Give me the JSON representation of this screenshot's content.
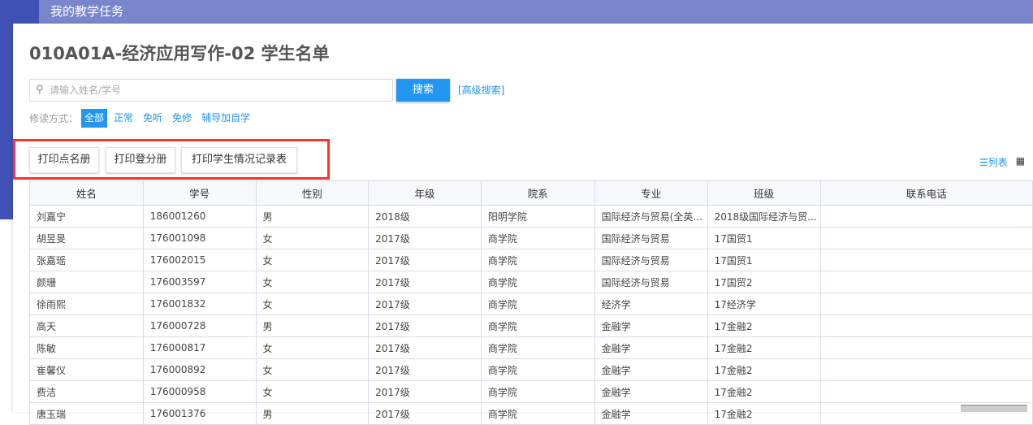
{
  "header": {
    "title": "我的教学任务"
  },
  "page": {
    "title": "010A01A-经济应用写作-02 学生名单"
  },
  "search": {
    "placeholder": "请输入姓名/学号",
    "button": "搜索",
    "advanced": "[高级搜索]"
  },
  "filter": {
    "label": "修读方式：",
    "options": [
      "全部",
      "正常",
      "免听",
      "免修",
      "辅导加自学"
    ],
    "selected": "全部"
  },
  "actions": [
    "打印点名册",
    "打印登分册",
    "打印学生情况记录表"
  ],
  "view": {
    "list": "列表",
    "list_icon": "list-icon",
    "grid_icon": "grid-icon"
  },
  "colors": {
    "accent": "#2196f3",
    "sidebar": "#3f51b5",
    "header": "#7986cb",
    "highlight": "#ff3333"
  },
  "table": {
    "columns": [
      "姓名",
      "学号",
      "性别",
      "年级",
      "院系",
      "专业",
      "班级",
      "联系电话"
    ],
    "rows": [
      [
        "刘嘉宁",
        "186001260",
        "男",
        "2018级",
        "阳明学院",
        "国际经济与贸易(全英...",
        "2018级国际经济与贸...",
        ""
      ],
      [
        "胡昱旻",
        "176001098",
        "女",
        "2017级",
        "商学院",
        "国际经济与贸易",
        "17国贸1",
        ""
      ],
      [
        "张嘉瑶",
        "176002015",
        "女",
        "2017级",
        "商学院",
        "国际经济与贸易",
        "17国贸1",
        ""
      ],
      [
        "颜珊",
        "176003597",
        "女",
        "2017级",
        "商学院",
        "国际经济与贸易",
        "17国贸2",
        ""
      ],
      [
        "徐雨熙",
        "176001832",
        "女",
        "2017级",
        "商学院",
        "经济学",
        "17经济学",
        ""
      ],
      [
        "高天",
        "176000728",
        "男",
        "2017级",
        "商学院",
        "金融学",
        "17金融2",
        ""
      ],
      [
        "陈敏",
        "176000817",
        "女",
        "2017级",
        "商学院",
        "金融学",
        "17金融2",
        ""
      ],
      [
        "崔馨仪",
        "176000892",
        "女",
        "2017级",
        "商学院",
        "金融学",
        "17金融2",
        ""
      ],
      [
        "费洁",
        "176000958",
        "女",
        "2017级",
        "商学院",
        "金融学",
        "17金融2",
        ""
      ],
      [
        "唐玉瑞",
        "176001376",
        "男",
        "2017级",
        "商学院",
        "金融学",
        "17金融2",
        ""
      ]
    ]
  }
}
